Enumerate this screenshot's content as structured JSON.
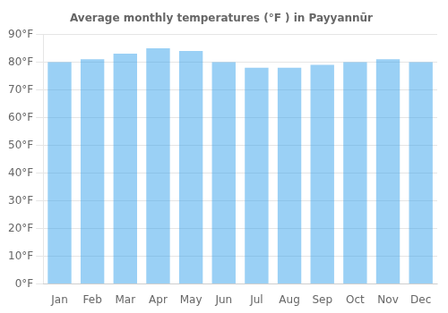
{
  "chart_data": {
    "type": "bar",
    "title": "Average monthly temperatures (°F ) in Payyannūr",
    "categories": [
      "Jan",
      "Feb",
      "Mar",
      "Apr",
      "May",
      "Jun",
      "Jul",
      "Aug",
      "Sep",
      "Oct",
      "Nov",
      "Dec"
    ],
    "values": [
      80,
      81,
      83,
      85,
      84,
      80,
      78,
      78,
      79,
      80,
      81,
      80
    ],
    "ylim": [
      0,
      90
    ],
    "yticks": [
      {
        "value": 0,
        "label": "0°F"
      },
      {
        "value": 10,
        "label": "10°F"
      },
      {
        "value": 20,
        "label": "20°F"
      },
      {
        "value": 30,
        "label": "30°F"
      },
      {
        "value": 40,
        "label": "40°F"
      },
      {
        "value": 50,
        "label": "50°F"
      },
      {
        "value": 60,
        "label": "60°F"
      },
      {
        "value": 70,
        "label": "70°F"
      },
      {
        "value": 80,
        "label": "80°F"
      },
      {
        "value": 90,
        "label": "90°F"
      }
    ],
    "grid": true
  }
}
